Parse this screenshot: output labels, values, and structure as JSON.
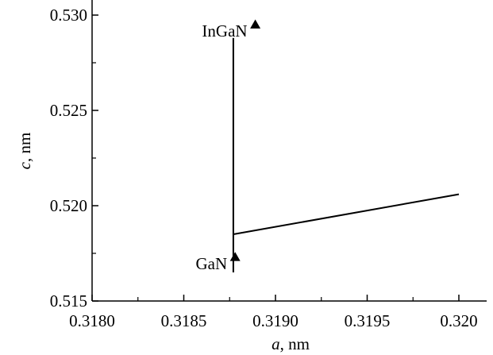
{
  "chart_data": {
    "type": "scatter",
    "title": "",
    "xlabel_var": "a",
    "xlabel_unit": ", nm",
    "ylabel_var": "c",
    "ylabel_unit": ", nm",
    "xlim": [
      0.318,
      0.32
    ],
    "ylim": [
      0.515,
      0.53
    ],
    "x_ticks": [
      0.318,
      0.3185,
      0.319,
      0.3195,
      0.32
    ],
    "x_tick_labels": [
      "0.3180",
      "0.3185",
      "0.3190",
      "0.3195",
      "0.320"
    ],
    "y_ticks": [
      0.515,
      0.52,
      0.525,
      0.53
    ],
    "y_tick_labels": [
      "0.515",
      "0.520",
      "0.525",
      "0.530"
    ],
    "points": [
      {
        "label": "InGaN",
        "x": 0.31889,
        "y": 0.5295
      },
      {
        "label": "GaN",
        "x": 0.31878,
        "y": 0.5173
      }
    ],
    "lines": [
      {
        "x": [
          0.31877,
          0.31877
        ],
        "y": [
          0.5165,
          0.5288
        ]
      },
      {
        "x": [
          0.31877,
          0.32
        ],
        "y": [
          0.5185,
          0.5206
        ]
      }
    ],
    "grid": false,
    "marker": "triangle",
    "color": "#000000"
  }
}
